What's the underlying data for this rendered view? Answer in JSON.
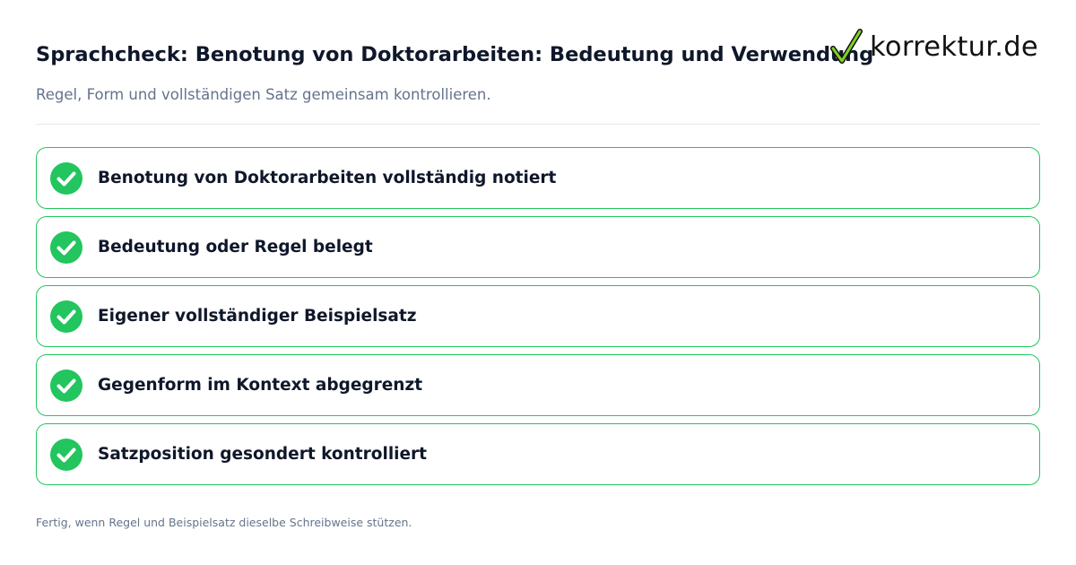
{
  "header": {
    "title": "Sprachcheck: Benotung von Doktorarbeiten: Bedeutung und Verwendung",
    "subtitle": "Regel, Form und vollständigen Satz gemeinsam kontrollieren."
  },
  "logo": {
    "text": "korrektur.de",
    "icon": "checkmark-icon"
  },
  "checklist": {
    "items": [
      {
        "label": "Benotung von Doktorarbeiten vollständig notiert",
        "icon": "check-circle-icon"
      },
      {
        "label": "Bedeutung oder Regel belegt",
        "icon": "check-circle-icon"
      },
      {
        "label": "Eigener vollständiger Beispielsatz",
        "icon": "check-circle-icon"
      },
      {
        "label": "Gegenform im Kontext abgegrenzt",
        "icon": "check-circle-icon"
      },
      {
        "label": "Satzposition gesondert kontrolliert",
        "icon": "check-circle-icon"
      }
    ]
  },
  "footer": {
    "text": "Fertig, wenn Regel und Beispielsatz dieselbe Schreibweise stützen."
  },
  "colors": {
    "accent_green": "#22c55e",
    "title_text": "#0f172a",
    "muted_text": "#64748b",
    "divider": "#e5e7eb"
  }
}
